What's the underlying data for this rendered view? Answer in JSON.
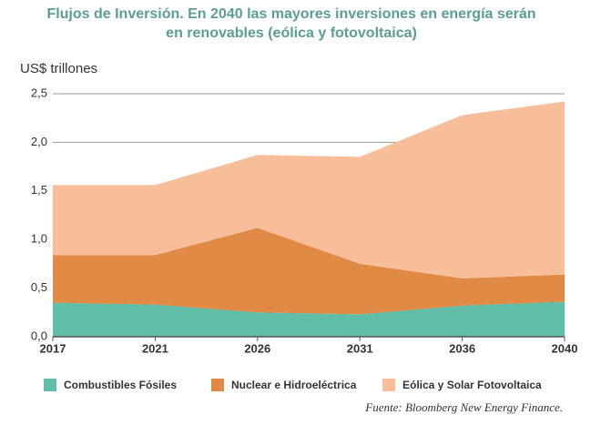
{
  "chart_data": {
    "type": "stacked_area",
    "title": [
      "Flujos de Inversión. En 2040  las mayores inversiones en energía serán",
      "en renovables (eólica y fotovoltaica)"
    ],
    "y_label": "US$ trillones",
    "source": "Fuente: Bloomberg New Energy Finance.",
    "categories": [
      "2017",
      "2021",
      "2026",
      "2031",
      "2036",
      "2040"
    ],
    "series": [
      {
        "name": "Combustibles Fósiles",
        "color": "#5fbda8",
        "values": [
          0.35,
          0.33,
          0.25,
          0.23,
          0.32,
          0.36
        ]
      },
      {
        "name": "Nuclear e Hidroeléctrica",
        "color": "#e08a45",
        "values": [
          0.49,
          0.51,
          0.87,
          0.52,
          0.28,
          0.28
        ]
      },
      {
        "name": "Eólica y Solar Fotovoltaica",
        "color": "#f8bd99",
        "values": [
          0.72,
          0.72,
          0.75,
          1.1,
          1.68,
          1.78
        ]
      }
    ],
    "ylim": [
      0,
      2.5
    ],
    "yticks": [
      {
        "value": 0,
        "label": "0,0"
      },
      {
        "value": 0.5,
        "label": "0,5"
      },
      {
        "value": 1,
        "label": "1,0"
      },
      {
        "value": 1.5,
        "label": "1,5"
      },
      {
        "value": 2,
        "label": "2,0"
      },
      {
        "value": 2.5,
        "label": "2,5"
      }
    ],
    "grid": true
  }
}
